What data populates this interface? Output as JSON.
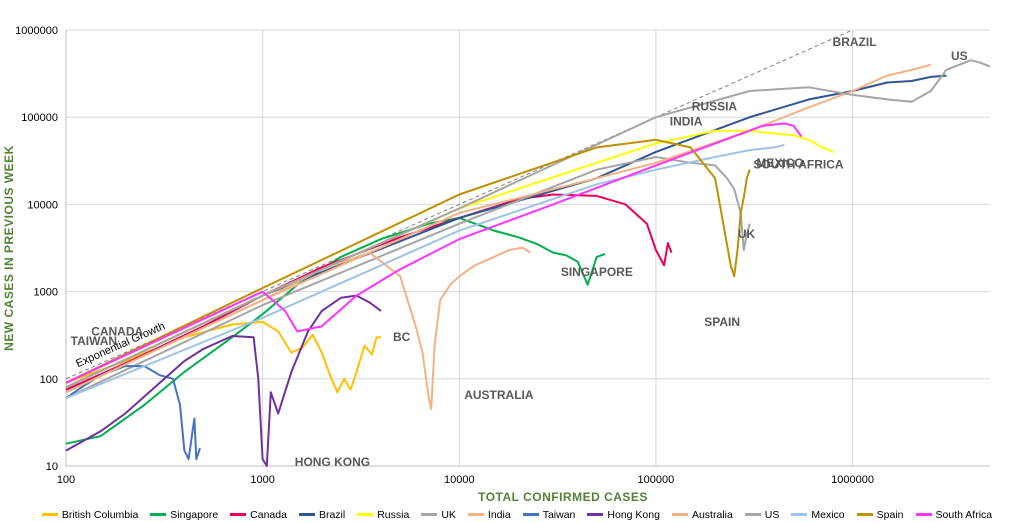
{
  "chart_data": {
    "type": "line",
    "x_scale": "log",
    "y_scale": "log",
    "xlim": [
      100,
      5000000
    ],
    "ylim": [
      10,
      1000000
    ],
    "xlabel": "TOTAL CONFIRMED CASES",
    "ylabel": "NEW CASES IN PREVIOUS WEEK",
    "grid": true,
    "legend_position": "bottom",
    "x_ticks": [
      "100",
      "1000",
      "10000",
      "100000",
      "1000000"
    ],
    "y_ticks": [
      "10",
      "100",
      "1000",
      "10000",
      "100000",
      "1000000"
    ],
    "reference_line": {
      "label": "Exponential Growth",
      "x": [
        100,
        1000000
      ],
      "y": [
        100,
        1000000
      ]
    },
    "series": [
      {
        "name": "British Columbia",
        "label": "BC",
        "color": "#ffc000",
        "x": [
          100,
          200,
          400,
          700,
          1000,
          1200,
          1400,
          1600,
          1800,
          2000,
          2200,
          2400,
          2600,
          2800,
          3000,
          3300,
          3600,
          3800,
          4000
        ],
        "y": [
          90,
          160,
          300,
          420,
          450,
          350,
          200,
          230,
          320,
          200,
          110,
          70,
          100,
          75,
          120,
          240,
          190,
          300,
          300
        ]
      },
      {
        "name": "Singapore",
        "label": "SINGAPORE",
        "color": "#00b050",
        "x": [
          100,
          150,
          250,
          400,
          700,
          1000,
          1500,
          2500,
          4000,
          7000,
          10000,
          15000,
          20000,
          25000,
          30000,
          35000,
          40000,
          45000,
          50000,
          55000
        ],
        "y": [
          18,
          22,
          50,
          120,
          300,
          550,
          1200,
          2500,
          4000,
          6000,
          7000,
          5000,
          4200,
          3500,
          2800,
          2600,
          2200,
          1200,
          2500,
          2700
        ]
      },
      {
        "name": "Canada",
        "label": "CANADA",
        "color": "#e8005a",
        "x": [
          100,
          200,
          500,
          1000,
          2000,
          5000,
          10000,
          20000,
          30000,
          50000,
          70000,
          90000,
          100000,
          110000,
          115000,
          120000
        ],
        "y": [
          75,
          150,
          400,
          900,
          1900,
          4200,
          7000,
          11500,
          13000,
          12500,
          10000,
          6000,
          3000,
          2000,
          3600,
          2800
        ]
      },
      {
        "name": "Brazil",
        "label": "BRAZIL",
        "color": "#2f5597",
        "x": [
          100,
          1000,
          10000,
          50000,
          100000,
          300000,
          600000,
          1000000,
          1500000,
          2000000,
          2500000,
          3000000
        ],
        "y": [
          80,
          900,
          7000,
          20000,
          40000,
          100000,
          160000,
          200000,
          250000,
          260000,
          290000,
          300000
        ]
      },
      {
        "name": "Russia",
        "label": "RUSSIA",
        "color": "#ffff00",
        "x": [
          100,
          1000,
          10000,
          50000,
          100000,
          200000,
          300000,
          400000,
          500000,
          600000,
          700000,
          800000
        ],
        "y": [
          80,
          900,
          9000,
          30000,
          50000,
          70000,
          70000,
          65000,
          62000,
          55000,
          45000,
          40000
        ]
      },
      {
        "name": "UK",
        "label": "UK",
        "color": "#a5a5a5",
        "x": [
          100,
          1000,
          10000,
          50000,
          100000,
          150000,
          200000,
          230000,
          250000,
          270000,
          280000,
          290000,
          300000
        ],
        "y": [
          60,
          700,
          6000,
          25000,
          35000,
          30000,
          28000,
          20000,
          15000,
          8000,
          3000,
          4500,
          6000
        ]
      },
      {
        "name": "India",
        "label": "INDIA",
        "color": "#f4b183",
        "x": [
          100,
          1000,
          10000,
          50000,
          100000,
          300000,
          600000,
          1000000,
          1500000,
          2000000,
          2500000
        ],
        "y": [
          70,
          800,
          8000,
          20000,
          30000,
          70000,
          130000,
          200000,
          300000,
          350000,
          400000
        ]
      },
      {
        "name": "Taiwan",
        "label": "TAIWAN",
        "color": "#4472c4",
        "x": [
          100,
          120,
          150,
          200,
          250,
          300,
          350,
          380,
          400,
          420,
          440,
          450,
          460,
          480
        ],
        "y": [
          60,
          80,
          110,
          140,
          140,
          110,
          100,
          50,
          15,
          12,
          25,
          35,
          12,
          16
        ]
      },
      {
        "name": "Hong Kong",
        "label": "HONG KONG",
        "color": "#7030a0",
        "x": [
          100,
          150,
          200,
          300,
          400,
          500,
          700,
          900,
          950,
          1000,
          1050,
          1100,
          1200,
          1400,
          1700,
          2000,
          2500,
          3000,
          3500,
          4000
        ],
        "y": [
          15,
          25,
          40,
          90,
          160,
          220,
          310,
          300,
          100,
          12,
          10,
          70,
          40,
          120,
          350,
          600,
          850,
          900,
          750,
          600
        ]
      },
      {
        "name": "Australia",
        "label": "AUSTRALIA",
        "color": "#f4b183",
        "x": [
          100,
          1000,
          2000,
          3500,
          5000,
          6000,
          6500,
          7000,
          7200,
          7500,
          8000,
          9000,
          10000,
          12000,
          15000,
          18000,
          21000,
          23000
        ],
        "y": [
          70,
          800,
          1800,
          2800,
          1500,
          400,
          200,
          60,
          45,
          250,
          800,
          1200,
          1500,
          2000,
          2500,
          3000,
          3200,
          2800
        ]
      },
      {
        "name": "US",
        "label": "US",
        "color": "#a5a5a5",
        "x": [
          100,
          1000,
          10000,
          100000,
          300000,
          600000,
          1000000,
          1500000,
          2000000,
          2500000,
          3000000,
          3500000,
          4000000,
          4500000,
          5000000
        ],
        "y": [
          80,
          900,
          9000,
          100000,
          200000,
          220000,
          180000,
          160000,
          150000,
          200000,
          350000,
          400000,
          450000,
          420000,
          380000
        ]
      },
      {
        "name": "Mexico",
        "label": "MEXICO",
        "color": "#9dc3e6",
        "x": [
          100,
          1000,
          10000,
          50000,
          100000,
          200000,
          300000,
          400000,
          450000
        ],
        "y": [
          60,
          500,
          5000,
          17000,
          25000,
          35000,
          42000,
          45000,
          48000
        ]
      },
      {
        "name": "Spain",
        "label": "SPAIN",
        "color": "#bf9000",
        "x": [
          100,
          1000,
          10000,
          50000,
          100000,
          150000,
          200000,
          220000,
          240000,
          250000,
          260000,
          270000,
          280000,
          290000,
          300000
        ],
        "y": [
          90,
          1100,
          13000,
          45000,
          55000,
          45000,
          20000,
          6000,
          2000,
          1500,
          3000,
          8000,
          12000,
          20000,
          25000
        ]
      },
      {
        "name": "South Africa",
        "label": "SOUTH AFRICA",
        "color": "#ff33ff",
        "x": [
          100,
          1000,
          1300,
          1500,
          2000,
          3000,
          5000,
          10000,
          30000,
          100000,
          200000,
          350000,
          450000,
          500000,
          550000
        ],
        "y": [
          90,
          1000,
          600,
          350,
          400,
          900,
          1800,
          4000,
          10000,
          28000,
          50000,
          80000,
          85000,
          80000,
          60000
        ]
      }
    ]
  }
}
